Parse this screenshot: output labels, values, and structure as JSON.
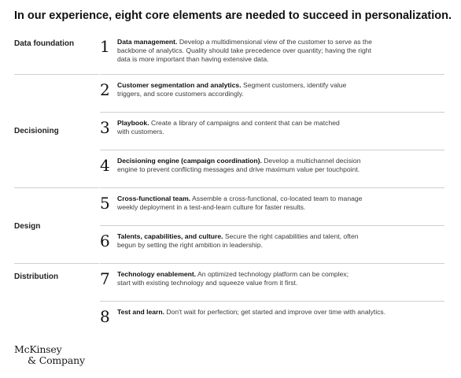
{
  "title": "In our experience, eight core elements are needed to succeed in personalization.",
  "categories": [
    "Data foundation",
    "Decisioning",
    "Design",
    "Distribution"
  ],
  "items": [
    {
      "number": "1",
      "heading": "Data management.",
      "body_lines": [
        "Develop a multidimensional view of the customer to serve as the",
        "backbone of analytics. Quality should take precedence over quantity; having the right",
        "data is more important than having extensive data."
      ]
    },
    {
      "number": "2",
      "heading": "Customer segmentation and analytics.",
      "body_lines": [
        "Segment customers, identify value",
        "triggers, and score customers accordingly."
      ]
    },
    {
      "number": "3",
      "heading": "Playbook.",
      "body_lines": [
        "Create a library of campaigns and content that can be matched",
        "with customers."
      ]
    },
    {
      "number": "4",
      "heading": "Decisioning engine (campaign coordination).",
      "body_lines": [
        "Develop a multichannel decision",
        "engine to prevent conflicting messages and drive maximum value per touchpoint."
      ]
    },
    {
      "number": "5",
      "heading": "Cross-functional team.",
      "body_lines": [
        "Assemble a cross-functional, co-located team to manage",
        "weekly deployment in a test-and-learn culture for faster results."
      ]
    },
    {
      "number": "6",
      "heading": "Talents, capabilities, and culture.",
      "body_lines": [
        "Secure the right capabilities and talent, often",
        "begun by setting the right ambition in leadership."
      ]
    },
    {
      "number": "7",
      "heading": "Technology enablement.",
      "body_lines": [
        "An optimized technology platform can be complex;",
        "start with existing technology and squeeze value from it first."
      ]
    },
    {
      "number": "8",
      "heading": "Test and learn.",
      "body_lines": [
        "Don't wait for perfection; get started and improve over time with analytics."
      ]
    }
  ],
  "logo": {
    "line1": "McKinsey",
    "line2": "& Company"
  }
}
